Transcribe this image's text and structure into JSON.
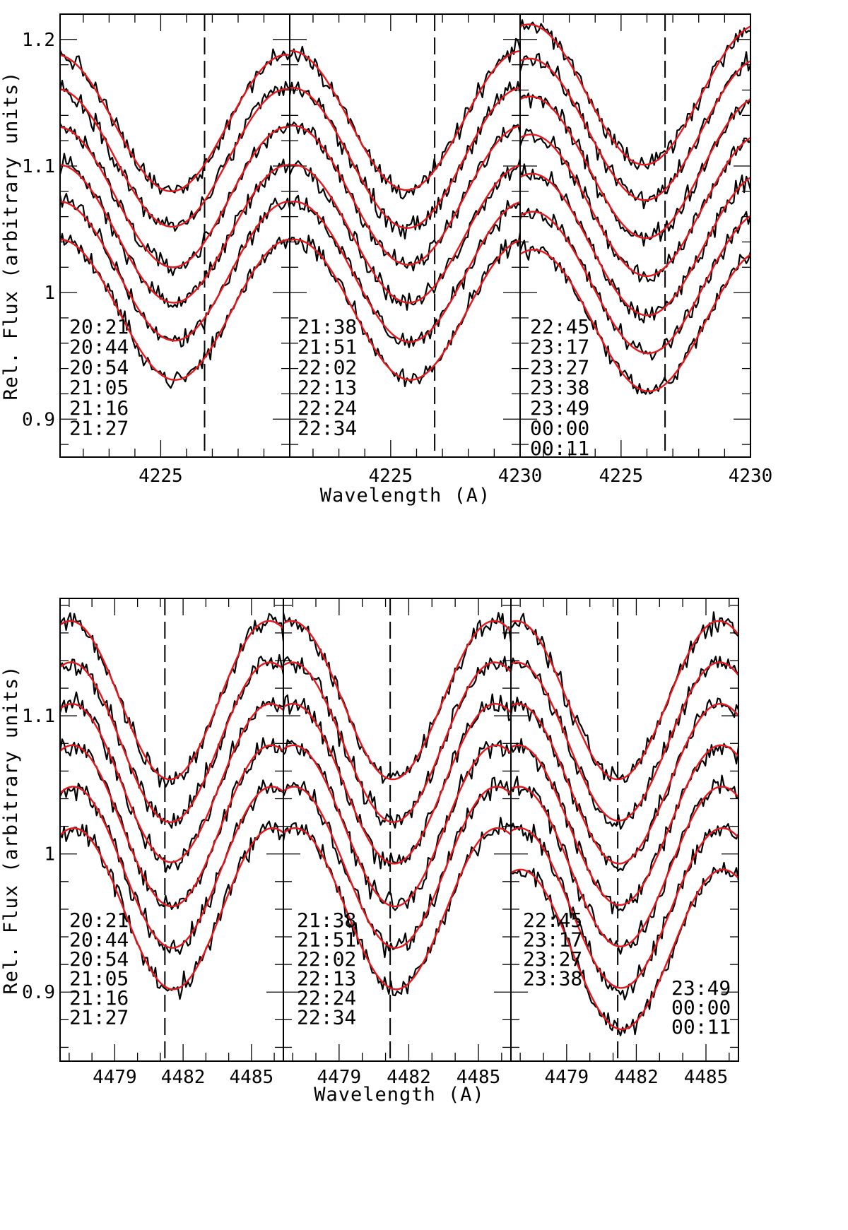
{
  "chart_data": [
    {
      "type": "line",
      "title": "",
      "xlabel": "Wavelength (A)",
      "ylabel": "Rel. Flux (arbitrary units)",
      "ylim": [
        0.87,
        1.22
      ],
      "yticks": [
        0.9,
        1,
        1.1,
        1.2
      ],
      "ytick_labels": [
        "0.9",
        "1",
        "1.1",
        "1.2"
      ],
      "line_center": 4226.7,
      "panels": [
        {
          "xlim": [
            4221.1,
            4230.0
          ],
          "xticks": [
            4225
          ],
          "xtick_labels": [
            "4225"
          ],
          "times": [
            "20:21",
            "20:44",
            "20:54",
            "21:05",
            "21:16",
            "21:27"
          ],
          "continua": [
            1.188,
            1.161,
            1.131,
            1.101,
            1.072,
            1.042
          ],
          "depths": [
            0.104,
            0.105,
            0.107,
            0.105,
            0.106,
            0.107
          ],
          "center": 4225.5
        },
        {
          "xlim": [
            4221.1,
            4230.0
          ],
          "xticks": [
            4225,
            4230
          ],
          "xtick_labels": [
            "4225",
            "4230"
          ],
          "times": [
            "21:38",
            "21:51",
            "22:02",
            "22:13",
            "22:24",
            "22:34"
          ],
          "continua": [
            1.191,
            1.162,
            1.132,
            1.101,
            1.072,
            1.042
          ],
          "depths": [
            0.106,
            0.107,
            0.106,
            0.105,
            0.107,
            0.107
          ],
          "center": 4225.7
        },
        {
          "xlim": [
            4221.1,
            4230.0
          ],
          "xticks": [
            4225,
            4230
          ],
          "xtick_labels": [
            "4225",
            "4230"
          ],
          "times": [
            "22:45",
            "23:17",
            "23:27",
            "23:38",
            "23:49",
            "00:00",
            "00:11"
          ],
          "continua": [
            1.212,
            1.185,
            1.155,
            1.125,
            1.094,
            1.064,
            1.034
          ],
          "depths": [
            0.107,
            0.108,
            0.108,
            0.108,
            0.108,
            0.108,
            0.108
          ],
          "center": 4226.0
        }
      ]
    },
    {
      "type": "line",
      "title": "",
      "xlabel": "Wavelength (A)",
      "ylabel": "Rel. Flux (arbitrary units)",
      "ylim": [
        0.85,
        1.185
      ],
      "yticks": [
        0.9,
        1,
        1.1
      ],
      "ytick_labels": [
        "0.9",
        "1",
        "1.1"
      ],
      "line_center": 4481.2,
      "panels": [
        {
          "xlim": [
            4476.6,
            4486.4
          ],
          "xticks": [
            4479,
            4482,
            4485
          ],
          "xtick_labels": [
            "4479",
            "4482",
            "4485"
          ],
          "times": [
            "20:21",
            "20:44",
            "20:54",
            "21:05",
            "21:16",
            "21:27"
          ],
          "continua": [
            1.169,
            1.139,
            1.109,
            1.079,
            1.049,
            1.019
          ],
          "depths": [
            0.111,
            0.112,
            0.111,
            0.113,
            0.113,
            0.113
          ],
          "center": 4481.5
        },
        {
          "xlim": [
            4476.6,
            4486.4
          ],
          "xticks": [
            4479,
            4482,
            4485
          ],
          "xtick_labels": [
            "4479",
            "4482",
            "4485"
          ],
          "times": [
            "21:38",
            "21:51",
            "22:02",
            "22:13",
            "22:24",
            "22:34"
          ],
          "continua": [
            1.169,
            1.139,
            1.109,
            1.079,
            1.049,
            1.019
          ],
          "depths": [
            0.111,
            0.112,
            0.112,
            0.113,
            0.113,
            0.113
          ],
          "center": 4481.4
        },
        {
          "xlim": [
            4476.6,
            4486.4
          ],
          "xticks": [
            4479,
            4482,
            4485
          ],
          "xtick_labels": [
            "4479",
            "4482",
            "4485"
          ],
          "times": [
            "22:45",
            "23:17",
            "23:27",
            "23:38",
            "23:49",
            "00:00",
            "00:11"
          ],
          "continua": [
            1.169,
            1.139,
            1.109,
            1.079,
            1.049,
            1.019,
            0.989
          ],
          "depths": [
            0.111,
            0.111,
            0.112,
            0.112,
            0.112,
            0.112,
            0.112
          ],
          "center": 4481.3
        }
      ]
    }
  ],
  "colors": {
    "observed": "#000000",
    "model": "#e8171d",
    "axis": "#000000"
  }
}
